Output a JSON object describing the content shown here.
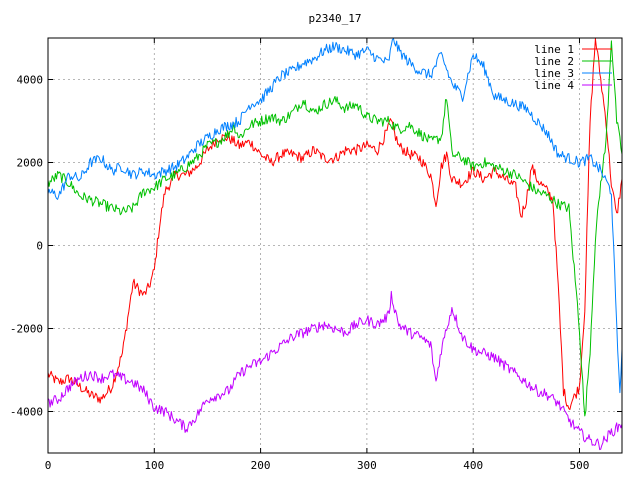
{
  "chart_data": {
    "type": "line",
    "title": "p2340_17",
    "xlabel": "",
    "ylabel": "",
    "xlim": [
      0,
      540
    ],
    "ylim": [
      -5000,
      5000
    ],
    "xticks": [
      0,
      100,
      200,
      300,
      400,
      500
    ],
    "yticks": [
      -4000,
      -2000,
      0,
      2000,
      4000
    ],
    "grid": true,
    "legend_position": "top-right",
    "series": [
      {
        "name": "line 1",
        "color": "#ff0000",
        "points": [
          [
            0,
            -3100
          ],
          [
            10,
            -3300
          ],
          [
            20,
            -3200
          ],
          [
            30,
            -3400
          ],
          [
            40,
            -3600
          ],
          [
            50,
            -3700
          ],
          [
            60,
            -3400
          ],
          [
            70,
            -2600
          ],
          [
            80,
            -900
          ],
          [
            90,
            -1200
          ],
          [
            95,
            -1000
          ],
          [
            100,
            -600
          ],
          [
            105,
            500
          ],
          [
            110,
            1300
          ],
          [
            120,
            1700
          ],
          [
            130,
            1700
          ],
          [
            140,
            1900
          ],
          [
            150,
            2300
          ],
          [
            160,
            2600
          ],
          [
            170,
            2600
          ],
          [
            180,
            2400
          ],
          [
            190,
            2500
          ],
          [
            200,
            2200
          ],
          [
            210,
            2000
          ],
          [
            220,
            2200
          ],
          [
            230,
            2200
          ],
          [
            240,
            2100
          ],
          [
            250,
            2300
          ],
          [
            260,
            2100
          ],
          [
            270,
            2100
          ],
          [
            280,
            2300
          ],
          [
            290,
            2300
          ],
          [
            300,
            2400
          ],
          [
            310,
            2300
          ],
          [
            320,
            2800
          ],
          [
            322,
            3000
          ],
          [
            330,
            2400
          ],
          [
            340,
            2200
          ],
          [
            350,
            2100
          ],
          [
            360,
            1700
          ],
          [
            365,
            1000
          ],
          [
            370,
            1900
          ],
          [
            375,
            2200
          ],
          [
            380,
            1600
          ],
          [
            390,
            1500
          ],
          [
            400,
            1800
          ],
          [
            410,
            1600
          ],
          [
            420,
            1800
          ],
          [
            430,
            1600
          ],
          [
            440,
            1400
          ],
          [
            445,
            700
          ],
          [
            450,
            1100
          ],
          [
            455,
            1900
          ],
          [
            460,
            1600
          ],
          [
            470,
            1300
          ],
          [
            475,
            1100
          ],
          [
            480,
            -1000
          ],
          [
            485,
            -3500
          ],
          [
            490,
            -3900
          ],
          [
            500,
            -3400
          ],
          [
            505,
            -1500
          ],
          [
            510,
            3000
          ],
          [
            515,
            5000
          ],
          [
            520,
            4000
          ],
          [
            525,
            3000
          ],
          [
            530,
            1500
          ],
          [
            535,
            700
          ],
          [
            540,
            1600
          ]
        ]
      },
      {
        "name": "line 2",
        "color": "#00c000",
        "points": [
          [
            0,
            1500
          ],
          [
            10,
            1700
          ],
          [
            20,
            1500
          ],
          [
            30,
            1200
          ],
          [
            40,
            1100
          ],
          [
            50,
            1000
          ],
          [
            60,
            900
          ],
          [
            70,
            800
          ],
          [
            80,
            900
          ],
          [
            90,
            1300
          ],
          [
            100,
            1400
          ],
          [
            110,
            1600
          ],
          [
            120,
            1700
          ],
          [
            130,
            1900
          ],
          [
            140,
            2100
          ],
          [
            150,
            2400
          ],
          [
            160,
            2500
          ],
          [
            170,
            2700
          ],
          [
            175,
            2900
          ],
          [
            180,
            2600
          ],
          [
            190,
            2900
          ],
          [
            200,
            3000
          ],
          [
            210,
            3100
          ],
          [
            220,
            3000
          ],
          [
            230,
            3200
          ],
          [
            240,
            3500
          ],
          [
            250,
            3200
          ],
          [
            260,
            3400
          ],
          [
            270,
            3500
          ],
          [
            280,
            3300
          ],
          [
            290,
            3400
          ],
          [
            300,
            3100
          ],
          [
            310,
            3000
          ],
          [
            320,
            3000
          ],
          [
            330,
            2800
          ],
          [
            340,
            2900
          ],
          [
            350,
            2700
          ],
          [
            360,
            2500
          ],
          [
            370,
            2600
          ],
          [
            375,
            3600
          ],
          [
            380,
            2200
          ],
          [
            390,
            2100
          ],
          [
            400,
            1900
          ],
          [
            410,
            2000
          ],
          [
            420,
            1900
          ],
          [
            430,
            1800
          ],
          [
            440,
            1700
          ],
          [
            450,
            1500
          ],
          [
            460,
            1300
          ],
          [
            470,
            1200
          ],
          [
            480,
            1000
          ],
          [
            490,
            900
          ],
          [
            500,
            -2000
          ],
          [
            505,
            -4200
          ],
          [
            510,
            -2500
          ],
          [
            515,
            200
          ],
          [
            520,
            1500
          ],
          [
            525,
            2500
          ],
          [
            530,
            5000
          ],
          [
            535,
            3000
          ],
          [
            540,
            2200
          ]
        ]
      },
      {
        "name": "line 3",
        "color": "#0080ff",
        "points": [
          [
            0,
            1300
          ],
          [
            10,
            1200
          ],
          [
            20,
            1700
          ],
          [
            30,
            1600
          ],
          [
            40,
            2000
          ],
          [
            50,
            2100
          ],
          [
            60,
            1800
          ],
          [
            70,
            1900
          ],
          [
            80,
            1700
          ],
          [
            90,
            1800
          ],
          [
            100,
            1700
          ],
          [
            110,
            1800
          ],
          [
            120,
            1900
          ],
          [
            130,
            2100
          ],
          [
            140,
            2400
          ],
          [
            150,
            2600
          ],
          [
            160,
            2800
          ],
          [
            170,
            2900
          ],
          [
            180,
            3000
          ],
          [
            190,
            3400
          ],
          [
            200,
            3500
          ],
          [
            210,
            3800
          ],
          [
            220,
            4100
          ],
          [
            230,
            4200
          ],
          [
            240,
            4400
          ],
          [
            250,
            4500
          ],
          [
            260,
            4700
          ],
          [
            270,
            4800
          ],
          [
            280,
            4700
          ],
          [
            290,
            4600
          ],
          [
            300,
            4700
          ],
          [
            310,
            4500
          ],
          [
            320,
            4400
          ],
          [
            325,
            5000
          ],
          [
            330,
            4700
          ],
          [
            340,
            4400
          ],
          [
            350,
            4200
          ],
          [
            360,
            4100
          ],
          [
            370,
            4600
          ],
          [
            380,
            3900
          ],
          [
            390,
            3600
          ],
          [
            400,
            4600
          ],
          [
            410,
            4300
          ],
          [
            420,
            3600
          ],
          [
            430,
            3500
          ],
          [
            440,
            3400
          ],
          [
            450,
            3300
          ],
          [
            460,
            3000
          ],
          [
            470,
            2700
          ],
          [
            480,
            2200
          ],
          [
            490,
            2100
          ],
          [
            500,
            2000
          ],
          [
            510,
            2100
          ],
          [
            520,
            1800
          ],
          [
            530,
            1300
          ],
          [
            535,
            -2000
          ],
          [
            538,
            -3500
          ],
          [
            540,
            -2500
          ]
        ]
      },
      {
        "name": "line 4",
        "color": "#c000ff",
        "points": [
          [
            0,
            -3800
          ],
          [
            10,
            -3700
          ],
          [
            20,
            -3400
          ],
          [
            30,
            -3200
          ],
          [
            40,
            -3100
          ],
          [
            50,
            -3200
          ],
          [
            60,
            -3100
          ],
          [
            70,
            -3200
          ],
          [
            80,
            -3300
          ],
          [
            90,
            -3500
          ],
          [
            100,
            -3900
          ],
          [
            110,
            -4000
          ],
          [
            120,
            -4200
          ],
          [
            130,
            -4400
          ],
          [
            140,
            -4100
          ],
          [
            150,
            -3700
          ],
          [
            160,
            -3600
          ],
          [
            170,
            -3500
          ],
          [
            180,
            -3100
          ],
          [
            190,
            -2900
          ],
          [
            200,
            -2800
          ],
          [
            210,
            -2600
          ],
          [
            220,
            -2400
          ],
          [
            230,
            -2200
          ],
          [
            240,
            -2100
          ],
          [
            250,
            -2000
          ],
          [
            260,
            -1900
          ],
          [
            270,
            -2000
          ],
          [
            280,
            -2100
          ],
          [
            290,
            -1900
          ],
          [
            300,
            -1800
          ],
          [
            310,
            -1900
          ],
          [
            320,
            -1700
          ],
          [
            323,
            -1200
          ],
          [
            330,
            -1900
          ],
          [
            340,
            -2100
          ],
          [
            350,
            -2200
          ],
          [
            360,
            -2400
          ],
          [
            365,
            -3300
          ],
          [
            370,
            -2500
          ],
          [
            380,
            -1500
          ],
          [
            390,
            -2200
          ],
          [
            400,
            -2500
          ],
          [
            410,
            -2600
          ],
          [
            420,
            -2700
          ],
          [
            430,
            -2900
          ],
          [
            440,
            -3100
          ],
          [
            450,
            -3300
          ],
          [
            460,
            -3500
          ],
          [
            470,
            -3600
          ],
          [
            480,
            -3800
          ],
          [
            490,
            -4200
          ],
          [
            500,
            -4500
          ],
          [
            510,
            -4700
          ],
          [
            520,
            -4800
          ],
          [
            530,
            -4500
          ],
          [
            540,
            -4300
          ]
        ]
      }
    ]
  }
}
